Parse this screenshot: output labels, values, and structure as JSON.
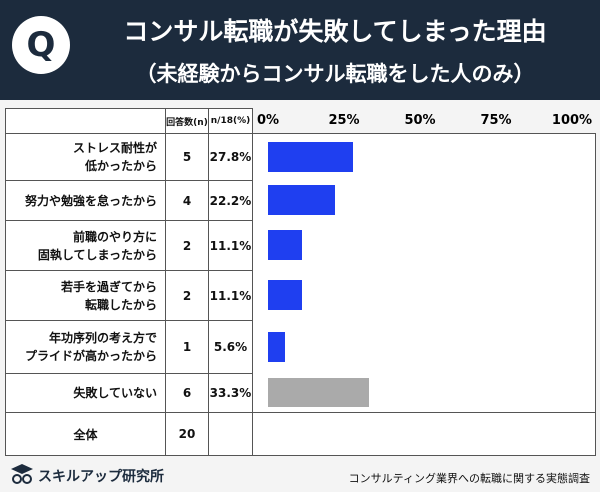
{
  "header": {
    "icon": "Q"
  },
  "chart_data": {
    "type": "bar",
    "title": "コンサル転職が失敗してしまった理由",
    "subtitle": "（未経験からコンサル転職をした人のみ）",
    "columns": [
      "回答数(n)",
      "n/18(%)"
    ],
    "categories": [
      "ストレス耐性が\n低かったから",
      "努力や勉強を怠ったから",
      "前職のやり方に\n固執してしまったから",
      "若手を過ぎてから\n転職したから",
      "年功序列の考え方で\nプライドが高かったから",
      "失敗していない"
    ],
    "counts": [
      5,
      4,
      2,
      2,
      1,
      6
    ],
    "values": [
      27.8,
      22.2,
      11.1,
      11.1,
      5.6,
      33.3
    ],
    "value_labels": [
      "27.8%",
      "22.2%",
      "11.1%",
      "11.1%",
      "5.6%",
      "33.3%"
    ],
    "colors": [
      "#1f3ff0",
      "#1f3ff0",
      "#1f3ff0",
      "#1f3ff0",
      "#1f3ff0",
      "#aaaaaa"
    ],
    "total_label": "全体",
    "total_count": 20,
    "xlim": [
      0,
      100
    ],
    "xticks": [
      {
        "value": 0,
        "label": "0%"
      },
      {
        "value": 25,
        "label": "25%"
      },
      {
        "value": 50,
        "label": "50%"
      },
      {
        "value": 75,
        "label": "75%"
      },
      {
        "value": 100,
        "label": "100%"
      }
    ]
  },
  "footer": {
    "brand": "スキルアップ研究所",
    "source": "コンサルティング業界への転職に関する実態調査"
  }
}
